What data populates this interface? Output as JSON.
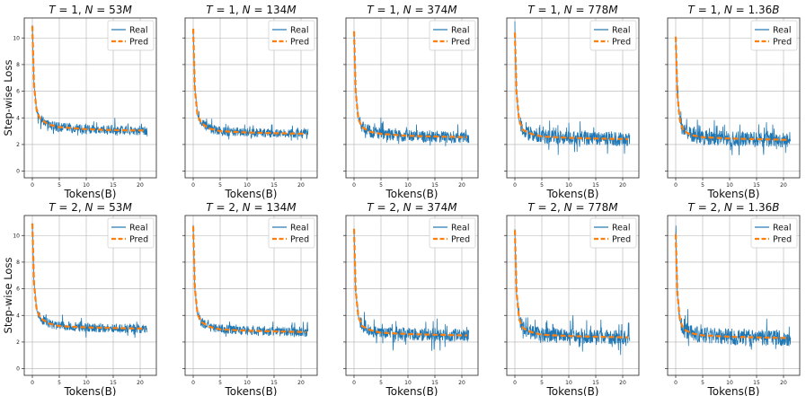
{
  "chart_data": [
    {
      "type": "line",
      "title": "T = 1, N = 53M",
      "title_parts": {
        "t": "1",
        "n": "53M"
      },
      "xlabel": "Tokens(B)",
      "ylabel": "Step-wise Loss",
      "show_y_ticks": true,
      "xlim": [
        -1.5,
        23
      ],
      "ylim": [
        -0.5,
        11.5
      ],
      "xticks": [
        0,
        5,
        10,
        15,
        20
      ],
      "yticks": [
        0,
        2,
        4,
        6,
        8,
        10
      ],
      "grid": true,
      "legend": {
        "position": "top-right",
        "entries": [
          "Real",
          "Pred"
        ]
      },
      "series": [
        {
          "name": "Real",
          "color": "#1f77b4",
          "style": "solid",
          "final_level": 3.1,
          "noise": 0.22,
          "spikes": 0.6
        },
        {
          "name": "Pred",
          "color": "#ff7f0e",
          "style": "dashed",
          "x": [
            0,
            0.3,
            0.8,
            1.5,
            3,
            5,
            10,
            15,
            21
          ],
          "y": [
            10.9,
            6.5,
            4.5,
            3.9,
            3.5,
            3.3,
            3.15,
            3.08,
            3.05
          ]
        }
      ]
    },
    {
      "type": "line",
      "title": "T = 1, N = 134M",
      "title_parts": {
        "t": "1",
        "n": "134M"
      },
      "xlabel": "Tokens(B)",
      "ylabel": "",
      "show_y_ticks": false,
      "xlim": [
        -1.5,
        23
      ],
      "ylim": [
        -0.5,
        11.5
      ],
      "xticks": [
        0,
        5,
        10,
        15,
        20
      ],
      "yticks": [
        0,
        2,
        4,
        6,
        8,
        10
      ],
      "grid": true,
      "legend": {
        "position": "top-right",
        "entries": [
          "Real",
          "Pred"
        ]
      },
      "series": [
        {
          "name": "Real",
          "color": "#1f77b4",
          "style": "solid",
          "final_level": 2.85,
          "noise": 0.22,
          "spikes": 0.5
        },
        {
          "name": "Pred",
          "color": "#ff7f0e",
          "style": "dashed",
          "x": [
            0,
            0.3,
            0.8,
            1.5,
            3,
            5,
            10,
            15,
            21
          ],
          "y": [
            10.7,
            6.2,
            4.2,
            3.6,
            3.2,
            3.0,
            2.9,
            2.85,
            2.8
          ]
        }
      ]
    },
    {
      "type": "line",
      "title": "T = 1, N = 374M",
      "title_parts": {
        "t": "1",
        "n": "374M"
      },
      "xlabel": "Tokens(B)",
      "ylabel": "",
      "show_y_ticks": false,
      "xlim": [
        -1.5,
        23
      ],
      "ylim": [
        -0.5,
        11.5
      ],
      "xticks": [
        0,
        5,
        10,
        15,
        20
      ],
      "yticks": [
        0,
        2,
        4,
        6,
        8,
        10
      ],
      "grid": true,
      "legend": {
        "position": "top-right",
        "entries": [
          "Real",
          "Pred"
        ]
      },
      "series": [
        {
          "name": "Real",
          "color": "#1f77b4",
          "style": "solid",
          "final_level": 2.6,
          "noise": 0.28,
          "spikes": 1.0
        },
        {
          "name": "Pred",
          "color": "#ff7f0e",
          "style": "dashed",
          "x": [
            0,
            0.3,
            0.8,
            1.5,
            3,
            5,
            10,
            15,
            21
          ],
          "y": [
            10.5,
            6.0,
            3.9,
            3.3,
            2.95,
            2.8,
            2.65,
            2.6,
            2.55
          ]
        }
      ]
    },
    {
      "type": "line",
      "title": "T = 1, N = 778M",
      "title_parts": {
        "t": "1",
        "n": "778M"
      },
      "xlabel": "Tokens(B)",
      "ylabel": "",
      "show_y_ticks": false,
      "xlim": [
        -1.5,
        23
      ],
      "ylim": [
        -0.5,
        11.5
      ],
      "xticks": [
        0,
        5,
        10,
        15,
        20
      ],
      "yticks": [
        0,
        2,
        4,
        6,
        8,
        10
      ],
      "grid": true,
      "legend": {
        "position": "top-right",
        "entries": [
          "Real",
          "Pred"
        ]
      },
      "series": [
        {
          "name": "Real",
          "color": "#1f77b4",
          "style": "solid",
          "final_level": 2.45,
          "noise": 0.32,
          "spikes": 1.2
        },
        {
          "name": "Pred",
          "color": "#ff7f0e",
          "style": "dashed",
          "x": [
            0,
            0.3,
            0.8,
            1.5,
            3,
            5,
            10,
            15,
            21
          ],
          "y": [
            10.4,
            5.9,
            3.8,
            3.1,
            2.8,
            2.6,
            2.5,
            2.45,
            2.4
          ]
        }
      ]
    },
    {
      "type": "line",
      "title": "T = 1, N = 1.36B",
      "title_parts": {
        "t": "1",
        "n": "1.36B"
      },
      "xlabel": "Tokens(B)",
      "ylabel": "",
      "show_y_ticks": false,
      "xlim": [
        -1.5,
        23
      ],
      "ylim": [
        -0.5,
        11.5
      ],
      "xticks": [
        0,
        5,
        10,
        15,
        20
      ],
      "yticks": [
        0,
        2,
        4,
        6,
        8,
        10
      ],
      "grid": true,
      "legend": {
        "position": "top-right",
        "entries": [
          "Real",
          "Pred"
        ]
      },
      "series": [
        {
          "name": "Real",
          "color": "#1f77b4",
          "style": "solid",
          "final_level": 2.4,
          "noise": 0.36,
          "spikes": 1.3
        },
        {
          "name": "Pred",
          "color": "#ff7f0e",
          "style": "dashed",
          "x": [
            0,
            0.3,
            0.8,
            1.5,
            3,
            5,
            10,
            15,
            21
          ],
          "y": [
            10.1,
            5.8,
            3.7,
            3.0,
            2.7,
            2.55,
            2.45,
            2.4,
            2.35
          ]
        }
      ]
    },
    {
      "type": "line",
      "title": "T = 2, N = 53M",
      "title_parts": {
        "t": "2",
        "n": "53M"
      },
      "xlabel": "Tokens(B)",
      "ylabel": "Step-wise Loss",
      "show_y_ticks": true,
      "xlim": [
        -1.5,
        23
      ],
      "ylim": [
        -0.5,
        11.5
      ],
      "xticks": [
        0,
        5,
        10,
        15,
        20
      ],
      "yticks": [
        0,
        2,
        4,
        6,
        8,
        10
      ],
      "grid": true,
      "legend": {
        "position": "top-right",
        "entries": [
          "Real",
          "Pred"
        ]
      },
      "series": [
        {
          "name": "Real",
          "color": "#1f77b4",
          "style": "solid",
          "final_level": 3.05,
          "noise": 0.22,
          "spikes": 0.6
        },
        {
          "name": "Pred",
          "color": "#ff7f0e",
          "style": "dashed",
          "x": [
            0,
            0.3,
            0.8,
            1.5,
            3,
            5,
            10,
            15,
            21
          ],
          "y": [
            10.9,
            6.4,
            4.4,
            3.8,
            3.4,
            3.2,
            3.1,
            3.05,
            3.0
          ]
        }
      ]
    },
    {
      "type": "line",
      "title": "T = 2, N = 134M",
      "title_parts": {
        "t": "2",
        "n": "134M"
      },
      "xlabel": "Tokens(B)",
      "ylabel": "",
      "show_y_ticks": false,
      "xlim": [
        -1.5,
        23
      ],
      "ylim": [
        -0.5,
        11.5
      ],
      "xticks": [
        0,
        5,
        10,
        15,
        20
      ],
      "yticks": [
        0,
        2,
        4,
        6,
        8,
        10
      ],
      "grid": true,
      "legend": {
        "position": "top-right",
        "entries": [
          "Real",
          "Pred"
        ]
      },
      "series": [
        {
          "name": "Real",
          "color": "#1f77b4",
          "style": "solid",
          "final_level": 2.8,
          "noise": 0.22,
          "spikes": 0.6
        },
        {
          "name": "Pred",
          "color": "#ff7f0e",
          "style": "dashed",
          "x": [
            0,
            0.3,
            0.8,
            1.5,
            3,
            5,
            10,
            15,
            21
          ],
          "y": [
            10.7,
            6.1,
            4.1,
            3.5,
            3.15,
            2.95,
            2.85,
            2.8,
            2.75
          ]
        }
      ]
    },
    {
      "type": "line",
      "title": "T = 2, N = 374M",
      "title_parts": {
        "t": "2",
        "n": "374M"
      },
      "xlabel": "Tokens(B)",
      "ylabel": "",
      "show_y_ticks": false,
      "xlim": [
        -1.5,
        23
      ],
      "ylim": [
        -0.5,
        11.5
      ],
      "xticks": [
        0,
        5,
        10,
        15,
        20
      ],
      "yticks": [
        0,
        2,
        4,
        6,
        8,
        10
      ],
      "grid": true,
      "legend": {
        "position": "top-right",
        "entries": [
          "Real",
          "Pred"
        ]
      },
      "series": [
        {
          "name": "Real",
          "color": "#1f77b4",
          "style": "solid",
          "final_level": 2.55,
          "noise": 0.3,
          "spikes": 1.1
        },
        {
          "name": "Pred",
          "color": "#ff7f0e",
          "style": "dashed",
          "x": [
            0,
            0.3,
            0.8,
            1.5,
            3,
            5,
            10,
            15,
            21
          ],
          "y": [
            10.5,
            5.9,
            3.9,
            3.2,
            2.9,
            2.7,
            2.6,
            2.55,
            2.5
          ]
        }
      ]
    },
    {
      "type": "line",
      "title": "T = 2, N = 778M",
      "title_parts": {
        "t": "2",
        "n": "778M"
      },
      "xlabel": "Tokens(B)",
      "ylabel": "",
      "show_y_ticks": false,
      "xlim": [
        -1.5,
        23
      ],
      "ylim": [
        -0.5,
        11.5
      ],
      "xticks": [
        0,
        5,
        10,
        15,
        20
      ],
      "yticks": [
        0,
        2,
        4,
        6,
        8,
        10
      ],
      "grid": true,
      "legend": {
        "position": "top-right",
        "entries": [
          "Real",
          "Pred"
        ]
      },
      "series": [
        {
          "name": "Real",
          "color": "#1f77b4",
          "style": "solid",
          "final_level": 2.4,
          "noise": 0.34,
          "spikes": 1.3
        },
        {
          "name": "Pred",
          "color": "#ff7f0e",
          "style": "dashed",
          "x": [
            0,
            0.3,
            0.8,
            1.5,
            3,
            5,
            10,
            15,
            21
          ],
          "y": [
            10.4,
            5.8,
            3.7,
            3.05,
            2.75,
            2.55,
            2.45,
            2.4,
            2.35
          ]
        }
      ]
    },
    {
      "type": "line",
      "title": "T = 2, N = 1.36B",
      "title_parts": {
        "t": "2",
        "n": "1.36B"
      },
      "xlabel": "Tokens(B)",
      "ylabel": "",
      "show_y_ticks": false,
      "xlim": [
        -1.5,
        23
      ],
      "ylim": [
        -0.5,
        11.5
      ],
      "xticks": [
        0,
        5,
        10,
        15,
        20
      ],
      "yticks": [
        0,
        2,
        4,
        6,
        8,
        10
      ],
      "grid": true,
      "legend": {
        "position": "top-right",
        "entries": [
          "Real",
          "Pred"
        ]
      },
      "series": [
        {
          "name": "Real",
          "color": "#1f77b4",
          "style": "solid",
          "final_level": 2.35,
          "noise": 0.38,
          "spikes": 1.4
        },
        {
          "name": "Pred",
          "color": "#ff7f0e",
          "style": "dashed",
          "x": [
            0,
            0.3,
            0.8,
            1.5,
            3,
            5,
            10,
            15,
            21
          ],
          "y": [
            10.1,
            5.7,
            3.6,
            2.95,
            2.65,
            2.5,
            2.4,
            2.35,
            2.3
          ]
        }
      ]
    }
  ]
}
